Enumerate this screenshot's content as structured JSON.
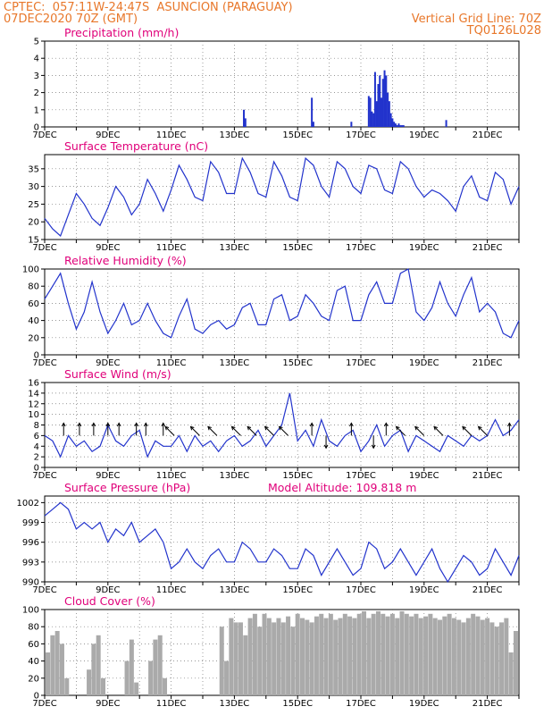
{
  "header": {
    "line1_left": "CPTEC:  057:11W-24:47S  ASUNCION (PARAGUAY)",
    "line2_left": "07DEC2020 70Z (GMT)",
    "line2_right": "Vertical Grid Line: 70Z",
    "line3_right": "TQ0126L028"
  },
  "model_altitude": "Model Altitude: 109.818 m",
  "x_tick_labels": [
    "7DEC",
    "9DEC",
    "11DEC",
    "13DEC",
    "15DEC",
    "17DEC",
    "19DEC",
    "21DEC"
  ],
  "colors": {
    "line": "#2233cc",
    "bar": "#2233cc",
    "cloud": "#aaaaaa",
    "title": "#e0007a",
    "header": "#e8772a"
  },
  "chart_data": [
    {
      "type": "bar",
      "title": "Precipitation (mm/h)",
      "ylim": [
        0,
        5
      ],
      "yticks": [
        0,
        1,
        2,
        3,
        4,
        5
      ],
      "x_unit": "days since 7DEC 00Z",
      "x": [
        6.3,
        6.35,
        8.45,
        8.5,
        9.7,
        10.25,
        10.3,
        10.35,
        10.4,
        10.45,
        10.5,
        10.55,
        10.6,
        10.65,
        10.7,
        10.75,
        10.8,
        10.85,
        10.9,
        10.95,
        11.0,
        11.05,
        11.1,
        11.15,
        11.2,
        11.25,
        11.3,
        11.35,
        12.7
      ],
      "values": [
        1.0,
        0.5,
        1.7,
        0.3,
        0.3,
        1.8,
        1.7,
        0.9,
        0.8,
        3.2,
        1.5,
        2.5,
        3.0,
        1.7,
        2.8,
        3.3,
        3.0,
        2.0,
        1.5,
        0.8,
        0.5,
        0.3,
        0.2,
        0.1,
        0.2,
        0.1,
        0.1,
        0.1,
        0.4
      ]
    },
    {
      "type": "line",
      "title": "Surface Temperature (nC)",
      "ylim": [
        15,
        39
      ],
      "yticks": [
        15,
        20,
        25,
        30,
        35
      ],
      "x": [
        0,
        0.25,
        0.5,
        0.75,
        1,
        1.25,
        1.5,
        1.75,
        2,
        2.25,
        2.5,
        2.75,
        3,
        3.25,
        3.5,
        3.75,
        4,
        4.25,
        4.5,
        4.75,
        5,
        5.25,
        5.5,
        5.75,
        6,
        6.25,
        6.5,
        6.75,
        7,
        7.25,
        7.5,
        7.75,
        8,
        8.25,
        8.5,
        8.75,
        9,
        9.25,
        9.5,
        9.75,
        10,
        10.25,
        10.5,
        10.75,
        11,
        11.25,
        11.5,
        11.75,
        12,
        12.25,
        12.5,
        12.75,
        13,
        13.25,
        13.5,
        13.75,
        14,
        14.25,
        14.5,
        14.75,
        15
      ],
      "values": [
        21,
        18,
        16,
        22,
        28,
        25,
        21,
        19,
        24,
        30,
        27,
        22,
        25,
        32,
        28,
        23,
        29,
        36,
        32,
        27,
        26,
        37,
        34,
        28,
        28,
        38,
        34,
        28,
        27,
        37,
        33,
        27,
        26,
        38,
        36,
        30,
        27,
        37,
        35,
        30,
        28,
        36,
        35,
        29,
        28,
        37,
        35,
        30,
        27,
        29,
        28,
        26,
        23,
        30,
        33,
        27,
        26,
        34,
        32,
        25,
        30
      ]
    },
    {
      "type": "line",
      "title": "Relative Humidity (%)",
      "ylim": [
        0,
        100
      ],
      "yticks": [
        0,
        20,
        40,
        60,
        80,
        100
      ],
      "x": [
        0,
        0.25,
        0.5,
        0.75,
        1,
        1.25,
        1.5,
        1.75,
        2,
        2.25,
        2.5,
        2.75,
        3,
        3.25,
        3.5,
        3.75,
        4,
        4.25,
        4.5,
        4.75,
        5,
        5.25,
        5.5,
        5.75,
        6,
        6.25,
        6.5,
        6.75,
        7,
        7.25,
        7.5,
        7.75,
        8,
        8.25,
        8.5,
        8.75,
        9,
        9.25,
        9.5,
        9.75,
        10,
        10.25,
        10.5,
        10.75,
        11,
        11.25,
        11.5,
        11.75,
        12,
        12.25,
        12.5,
        12.75,
        13,
        13.25,
        13.5,
        13.75,
        14,
        14.25,
        14.5,
        14.75,
        15
      ],
      "values": [
        65,
        80,
        95,
        60,
        30,
        50,
        85,
        50,
        25,
        40,
        60,
        35,
        40,
        60,
        40,
        25,
        20,
        45,
        65,
        30,
        25,
        35,
        40,
        30,
        35,
        55,
        60,
        35,
        35,
        65,
        70,
        40,
        45,
        70,
        60,
        45,
        40,
        75,
        80,
        40,
        40,
        70,
        85,
        60,
        60,
        95,
        100,
        50,
        40,
        55,
        85,
        60,
        45,
        70,
        90,
        50,
        60,
        50,
        25,
        20,
        40
      ]
    },
    {
      "type": "line",
      "title": "Surface Wind (m/s)",
      "ylim": [
        0,
        16
      ],
      "yticks": [
        0,
        2,
        4,
        6,
        8,
        10,
        12,
        14,
        16
      ],
      "x": [
        0,
        0.25,
        0.5,
        0.75,
        1,
        1.25,
        1.5,
        1.75,
        2,
        2.25,
        2.5,
        2.75,
        3,
        3.25,
        3.5,
        3.75,
        4,
        4.25,
        4.5,
        4.75,
        5,
        5.25,
        5.5,
        5.75,
        6,
        6.25,
        6.5,
        6.75,
        7,
        7.25,
        7.5,
        7.75,
        8,
        8.25,
        8.5,
        8.75,
        9,
        9.25,
        9.5,
        9.75,
        10,
        10.25,
        10.5,
        10.75,
        11,
        11.25,
        11.5,
        11.75,
        12,
        12.25,
        12.5,
        12.75,
        13,
        13.25,
        13.5,
        13.75,
        14,
        14.25,
        14.5,
        14.75,
        15
      ],
      "values": [
        6,
        5,
        2,
        6,
        4,
        5,
        3,
        4,
        8,
        5,
        4,
        6,
        7,
        2,
        5,
        4,
        4,
        6,
        3,
        6,
        4,
        5,
        3,
        5,
        6,
        4,
        5,
        7,
        4,
        6,
        8,
        14,
        5,
        7,
        4,
        9,
        5,
        4,
        6,
        7,
        3,
        5,
        8,
        4,
        6,
        7,
        3,
        6,
        5,
        4,
        3,
        6,
        5,
        4,
        6,
        5,
        6,
        9,
        6,
        7,
        9
      ],
      "arrows": [
        {
          "x": 0.6,
          "dir": "up"
        },
        {
          "x": 1.1,
          "dir": "up"
        },
        {
          "x": 1.55,
          "dir": "up"
        },
        {
          "x": 2.0,
          "dir": "up"
        },
        {
          "x": 2.35,
          "dir": "up"
        },
        {
          "x": 2.9,
          "dir": "up"
        },
        {
          "x": 3.2,
          "dir": "up"
        },
        {
          "x": 3.75,
          "dir": "up"
        },
        {
          "x": 4.1,
          "dir": "upleft"
        },
        {
          "x": 4.9,
          "dir": "upleft"
        },
        {
          "x": 5.45,
          "dir": "upleft"
        },
        {
          "x": 6.2,
          "dir": "upleft"
        },
        {
          "x": 6.7,
          "dir": "upleft"
        },
        {
          "x": 7.25,
          "dir": "upleft"
        },
        {
          "x": 7.7,
          "dir": "upleft"
        },
        {
          "x": 8.45,
          "dir": "up"
        },
        {
          "x": 8.9,
          "dir": "down"
        },
        {
          "x": 9.7,
          "dir": "up"
        },
        {
          "x": 10.4,
          "dir": "down"
        },
        {
          "x": 10.8,
          "dir": "up"
        },
        {
          "x": 11.4,
          "dir": "upleft"
        },
        {
          "x": 12.0,
          "dir": "upleft"
        },
        {
          "x": 12.6,
          "dir": "upleft"
        },
        {
          "x": 13.5,
          "dir": "upleft"
        },
        {
          "x": 14.0,
          "dir": "upleft"
        },
        {
          "x": 14.7,
          "dir": "up"
        }
      ]
    },
    {
      "type": "line",
      "title": "Surface Pressure (hPa)",
      "ylim": [
        990,
        1003
      ],
      "yticks": [
        990,
        993,
        996,
        999,
        1002
      ],
      "x": [
        0,
        0.25,
        0.5,
        0.75,
        1,
        1.25,
        1.5,
        1.75,
        2,
        2.25,
        2.5,
        2.75,
        3,
        3.25,
        3.5,
        3.75,
        4,
        4.25,
        4.5,
        4.75,
        5,
        5.25,
        5.5,
        5.75,
        6,
        6.25,
        6.5,
        6.75,
        7,
        7.25,
        7.5,
        7.75,
        8,
        8.25,
        8.5,
        8.75,
        9,
        9.25,
        9.5,
        9.75,
        10,
        10.25,
        10.5,
        10.75,
        11,
        11.25,
        11.5,
        11.75,
        12,
        12.25,
        12.5,
        12.75,
        13,
        13.25,
        13.5,
        13.75,
        14,
        14.25,
        14.5,
        14.75,
        15
      ],
      "values": [
        1000,
        1001,
        1002,
        1001,
        998,
        999,
        998,
        999,
        996,
        998,
        997,
        999,
        996,
        997,
        998,
        996,
        992,
        993,
        995,
        993,
        992,
        994,
        995,
        993,
        993,
        996,
        995,
        993,
        993,
        995,
        994,
        992,
        992,
        995,
        994,
        991,
        993,
        995,
        993,
        991,
        992,
        996,
        995,
        992,
        993,
        995,
        993,
        991,
        993,
        995,
        992,
        990,
        992,
        994,
        993,
        991,
        992,
        995,
        993,
        991,
        994
      ]
    },
    {
      "type": "bar",
      "title": "Cloud Cover (%)",
      "ylim": [
        0,
        100
      ],
      "yticks": [
        0,
        20,
        40,
        60,
        80,
        100
      ],
      "x": [
        0.1,
        0.25,
        0.4,
        0.55,
        0.7,
        1.4,
        1.55,
        1.7,
        1.85,
        2.6,
        2.75,
        2.9,
        3.35,
        3.5,
        3.65,
        3.8,
        5.6,
        5.75,
        5.9,
        6.05,
        6.2,
        6.35,
        6.5,
        6.65,
        6.8,
        6.95,
        7.1,
        7.25,
        7.4,
        7.55,
        7.7,
        7.85,
        8.0,
        8.15,
        8.3,
        8.45,
        8.6,
        8.75,
        8.9,
        9.05,
        9.2,
        9.35,
        9.5,
        9.65,
        9.8,
        9.95,
        10.1,
        10.25,
        10.4,
        10.55,
        10.7,
        10.85,
        11.0,
        11.15,
        11.3,
        11.45,
        11.6,
        11.75,
        11.9,
        12.05,
        12.2,
        12.35,
        12.5,
        12.65,
        12.8,
        12.95,
        13.1,
        13.25,
        13.4,
        13.55,
        13.7,
        13.85,
        14.0,
        14.15,
        14.3,
        14.45,
        14.6,
        14.75,
        14.9
      ],
      "values": [
        50,
        70,
        75,
        60,
        20,
        30,
        60,
        70,
        20,
        40,
        65,
        15,
        40,
        65,
        70,
        20,
        80,
        40,
        90,
        85,
        85,
        70,
        90,
        95,
        80,
        95,
        90,
        85,
        90,
        85,
        92,
        80,
        95,
        90,
        88,
        85,
        92,
        95,
        90,
        95,
        88,
        90,
        95,
        92,
        90,
        95,
        98,
        90,
        95,
        98,
        95,
        92,
        95,
        90,
        98,
        95,
        92,
        95,
        90,
        92,
        95,
        90,
        88,
        92,
        95,
        90,
        88,
        85,
        90,
        95,
        92,
        88,
        90,
        85,
        80,
        85,
        90,
        50,
        75
      ]
    }
  ]
}
